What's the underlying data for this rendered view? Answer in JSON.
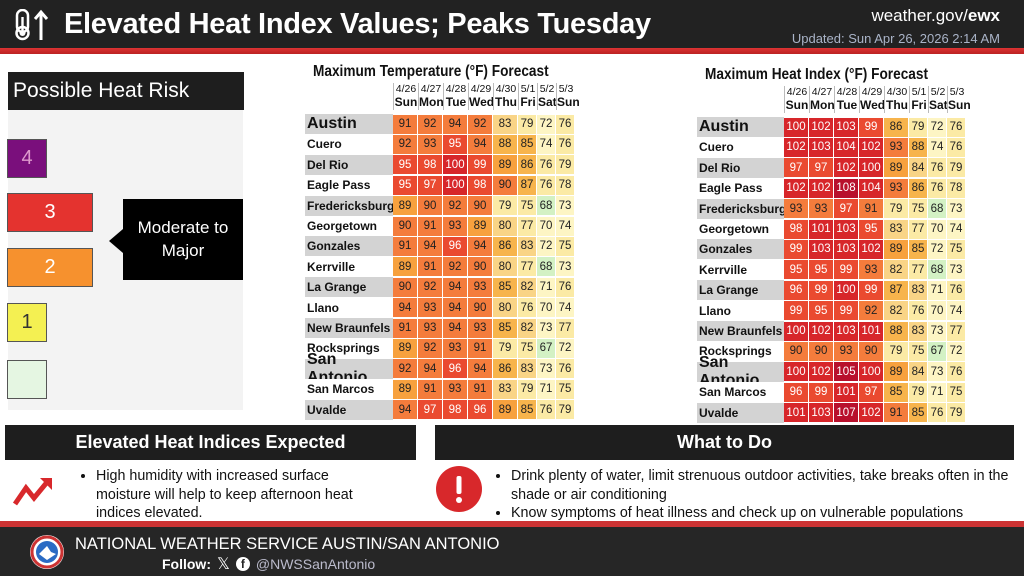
{
  "header": {
    "title": "Elevated Heat Index Values; Peaks Tuesday",
    "site_prefix": "weather.gov/",
    "site_office": "ewx",
    "updated": "Updated: Sun Apr 26, 2026 2:14 AM"
  },
  "risk": {
    "title": "Possible Heat Risk",
    "levels": [
      {
        "label": "4",
        "color": "#7a0f7c"
      },
      {
        "label": "3",
        "color": "#e4332f"
      },
      {
        "label": "2",
        "color": "#f6912e"
      },
      {
        "label": "1",
        "color": "#f4f052"
      },
      {
        "label": "",
        "color": "#e5f6e2"
      }
    ],
    "callout": "Moderate to Major"
  },
  "days": [
    {
      "date": "4/26",
      "day": "Sun"
    },
    {
      "date": "4/27",
      "day": "Mon"
    },
    {
      "date": "4/28",
      "day": "Tue"
    },
    {
      "date": "4/29",
      "day": "Wed"
    },
    {
      "date": "4/30",
      "day": "Thu"
    },
    {
      "date": "5/1",
      "day": "Fri"
    },
    {
      "date": "5/2",
      "day": "Sat"
    },
    {
      "date": "5/3",
      "day": "Sun"
    }
  ],
  "cities": [
    "Austin",
    "Cuero",
    "Del Rio",
    "Eagle Pass",
    "Fredericksburg",
    "Georgetown",
    "Gonzales",
    "Kerrville",
    "La Grange",
    "Llano",
    "New Braunfels",
    "Rocksprings",
    "San Antonio",
    "San Marcos",
    "Uvalde"
  ],
  "temp_table": {
    "title": "Maximum Temperature (°F) Forecast",
    "values": [
      [
        91,
        92,
        94,
        92,
        83,
        79,
        72,
        76
      ],
      [
        92,
        93,
        95,
        94,
        88,
        85,
        74,
        76
      ],
      [
        95,
        98,
        100,
        99,
        89,
        86,
        76,
        79
      ],
      [
        95,
        97,
        100,
        98,
        90,
        87,
        76,
        78
      ],
      [
        89,
        90,
        92,
        90,
        79,
        75,
        68,
        73
      ],
      [
        90,
        91,
        93,
        89,
        80,
        77,
        70,
        74
      ],
      [
        91,
        94,
        96,
        94,
        86,
        83,
        72,
        75
      ],
      [
        89,
        91,
        92,
        90,
        80,
        77,
        68,
        73
      ],
      [
        90,
        92,
        94,
        93,
        85,
        82,
        71,
        76
      ],
      [
        94,
        93,
        94,
        90,
        80,
        76,
        70,
        74
      ],
      [
        91,
        93,
        94,
        93,
        85,
        82,
        73,
        77
      ],
      [
        89,
        92,
        93,
        91,
        79,
        75,
        67,
        72
      ],
      [
        92,
        94,
        96,
        94,
        86,
        83,
        73,
        76
      ],
      [
        89,
        91,
        93,
        91,
        83,
        79,
        71,
        75
      ],
      [
        94,
        97,
        98,
        96,
        89,
        85,
        76,
        79
      ]
    ]
  },
  "heat_table": {
    "title": "Maximum Heat Index (°F) Forecast",
    "values": [
      [
        100,
        102,
        103,
        99,
        86,
        79,
        72,
        76
      ],
      [
        102,
        103,
        104,
        102,
        93,
        88,
        74,
        76
      ],
      [
        97,
        97,
        102,
        100,
        89,
        84,
        76,
        79
      ],
      [
        102,
        102,
        108,
        104,
        93,
        86,
        76,
        78
      ],
      [
        93,
        93,
        97,
        91,
        79,
        75,
        68,
        73
      ],
      [
        98,
        101,
        103,
        95,
        83,
        77,
        70,
        74
      ],
      [
        99,
        103,
        103,
        102,
        89,
        85,
        72,
        75
      ],
      [
        95,
        95,
        99,
        93,
        82,
        77,
        68,
        73
      ],
      [
        96,
        99,
        100,
        99,
        87,
        83,
        71,
        76
      ],
      [
        99,
        95,
        99,
        92,
        82,
        76,
        70,
        74
      ],
      [
        100,
        102,
        103,
        101,
        88,
        83,
        73,
        77
      ],
      [
        90,
        90,
        93,
        90,
        79,
        75,
        67,
        72
      ],
      [
        100,
        102,
        105,
        100,
        89,
        84,
        73,
        76
      ],
      [
        96,
        99,
        101,
        97,
        85,
        79,
        71,
        75
      ],
      [
        101,
        103,
        107,
        102,
        91,
        85,
        76,
        79
      ]
    ]
  },
  "expected": {
    "title": "Elevated Heat Indices Expected",
    "bullets": [
      "High humidity with increased surface moisture will help to keep afternoon heat indices elevated."
    ]
  },
  "todo": {
    "title": "What to Do",
    "bullets": [
      "Drink plenty of water, limit strenuous outdoor activities, take breaks often in the shade or air conditioning",
      "Know symptoms of heat illness and check up on vulnerable populations"
    ]
  },
  "footer": {
    "office": "NATIONAL WEATHER SERVICE AUSTIN/SAN ANTONIO",
    "follow_label": "Follow:",
    "handle": "@NWSSanAntonio"
  }
}
